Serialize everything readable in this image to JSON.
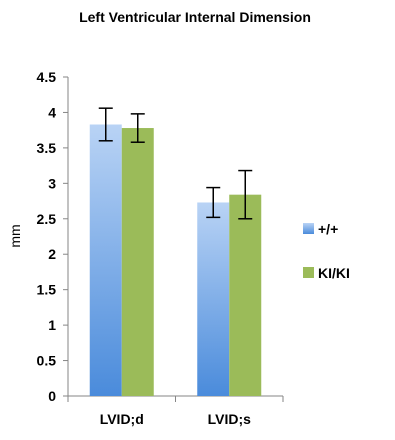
{
  "chart_data": {
    "type": "bar",
    "title": "Left Ventricular Internal Dimension",
    "xlabel": "",
    "ylabel": "mm",
    "ylim": [
      0,
      4.5
    ],
    "yticks": [
      0,
      0.5,
      1,
      1.5,
      2,
      2.5,
      3,
      3.5,
      4,
      4.5
    ],
    "categories": [
      "LVID;d",
      "LVID;s"
    ],
    "series": [
      {
        "name": "+/+",
        "values": [
          3.83,
          2.73
        ],
        "errors": [
          0.23,
          0.21
        ],
        "color": "#6fa6e6"
      },
      {
        "name": "KI/KI",
        "values": [
          3.78,
          2.84
        ],
        "errors": [
          0.2,
          0.34
        ],
        "color": "#9bbb59"
      }
    ],
    "legend": "right",
    "grid": false
  }
}
